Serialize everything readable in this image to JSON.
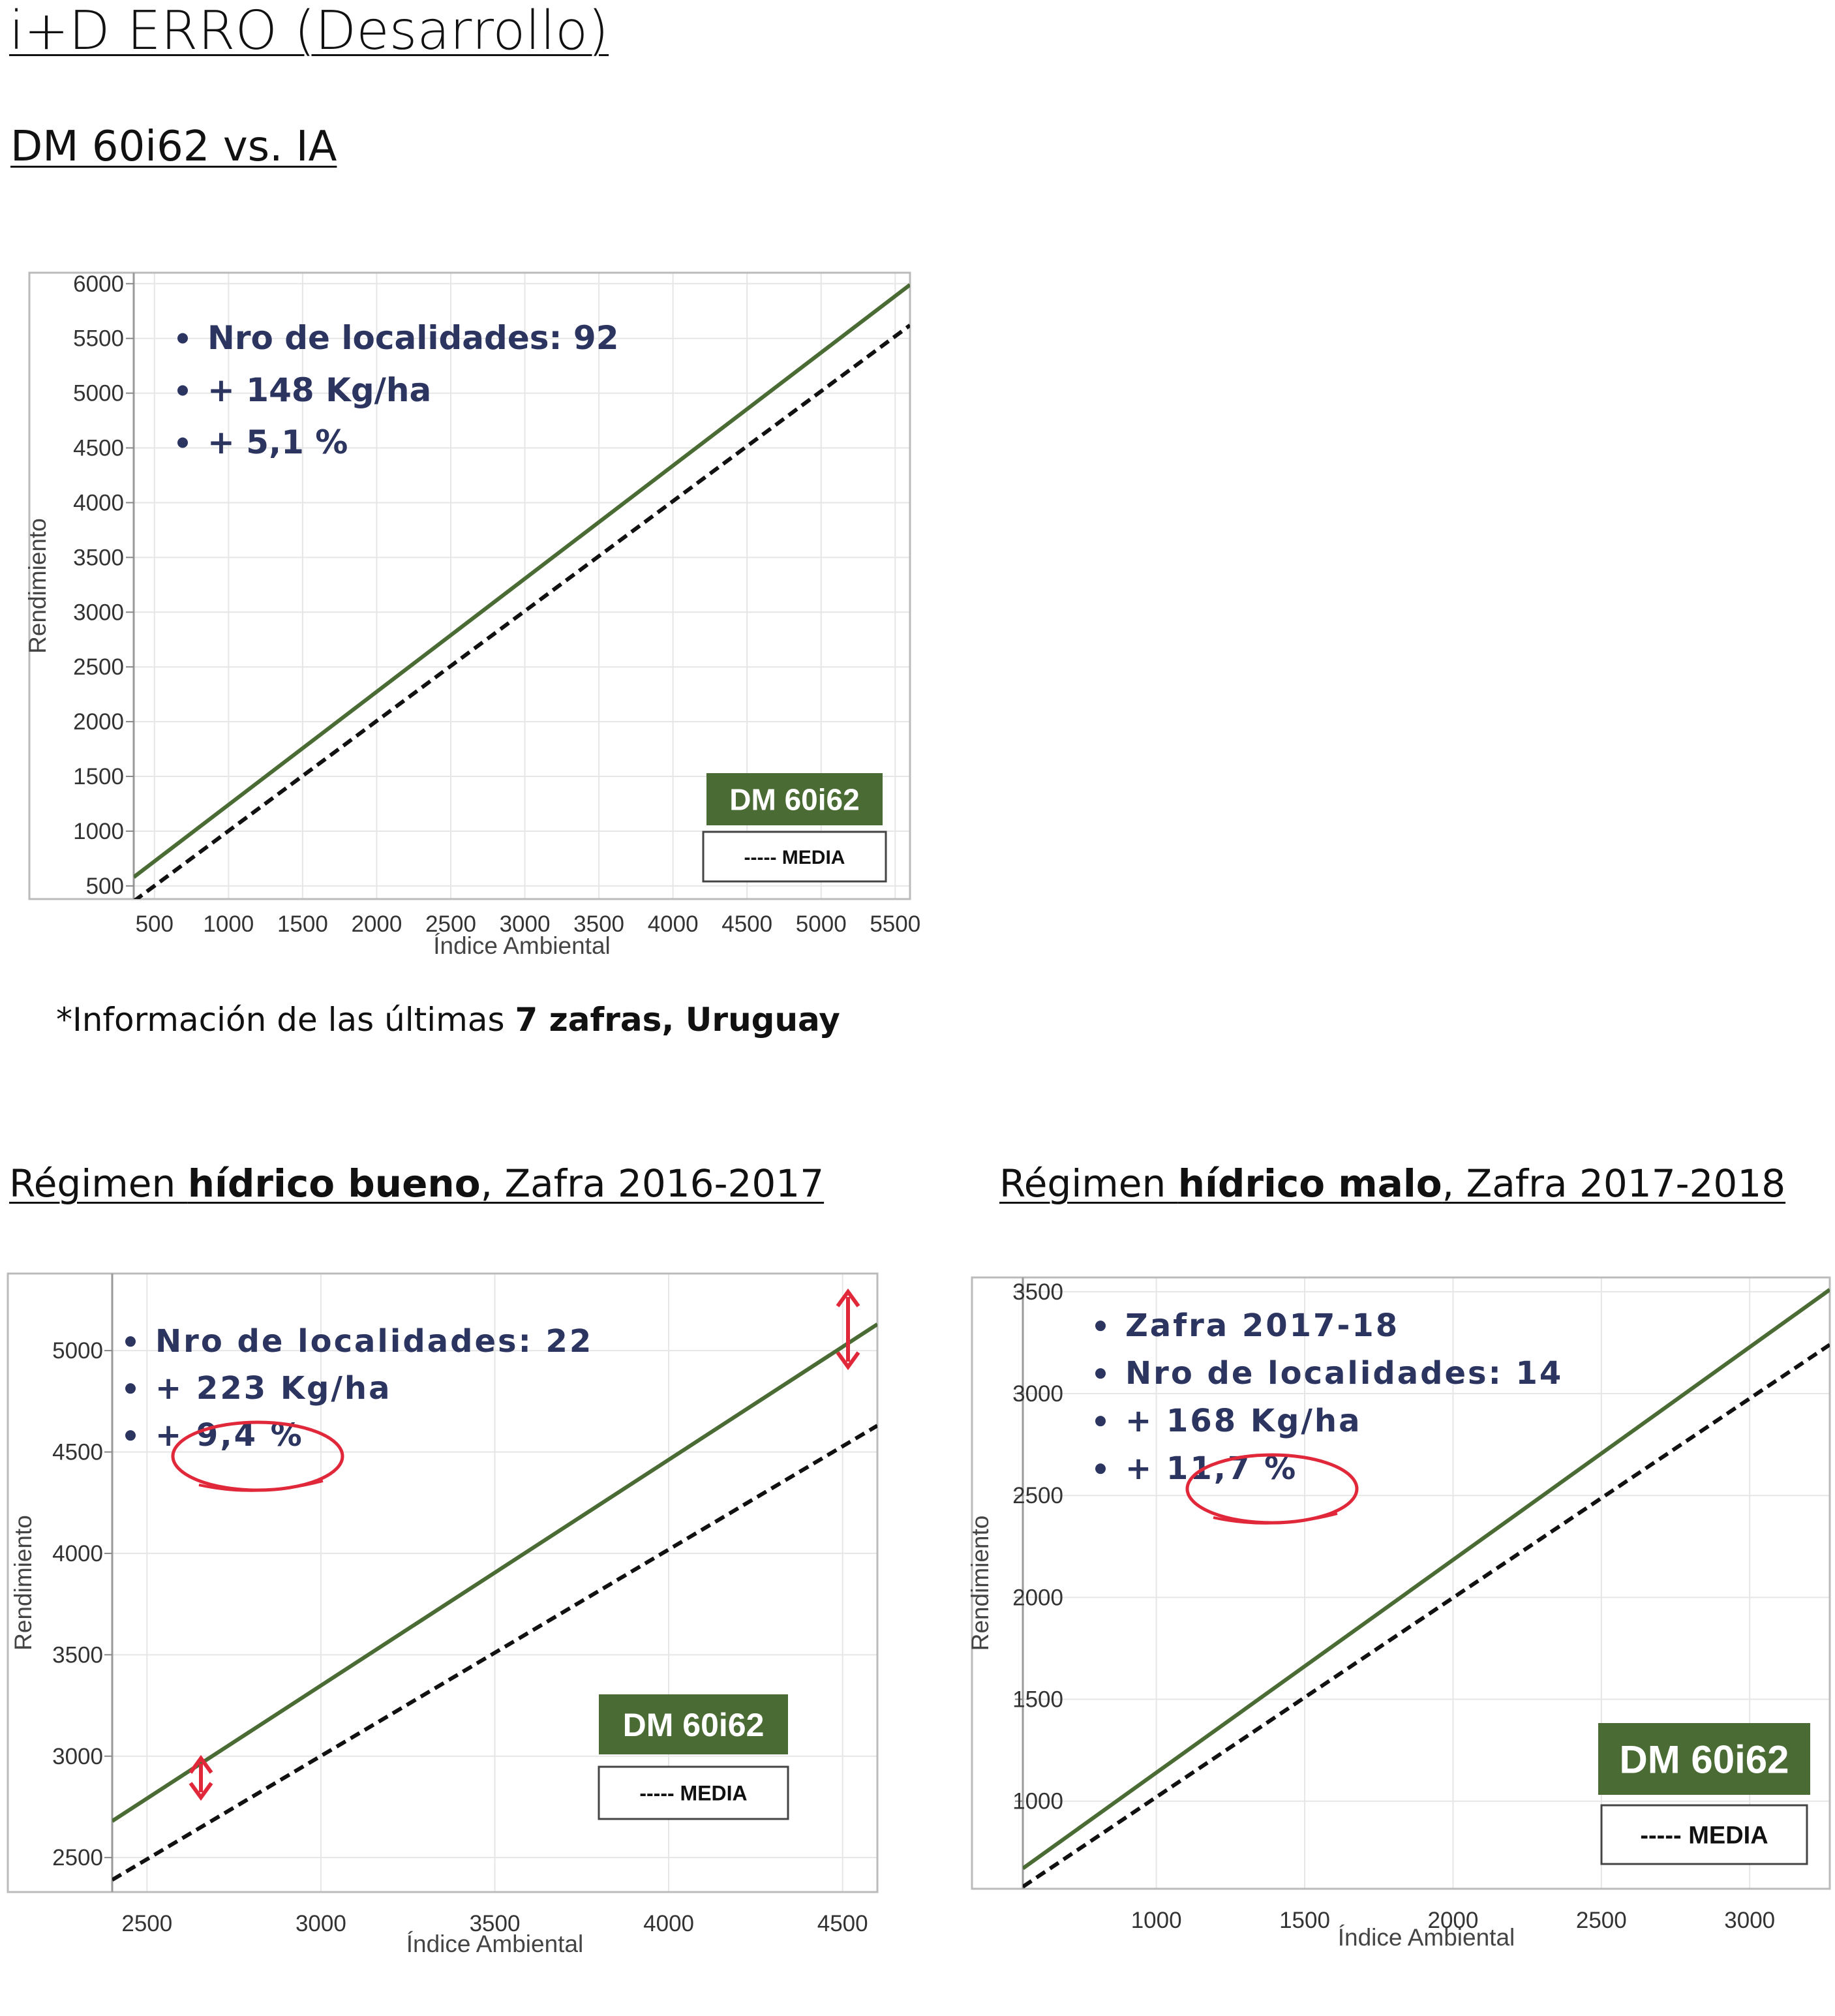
{
  "header": {
    "title": "i+D ERRO (Desarrollo)",
    "subtitle": "DM 60i62 vs. IA",
    "note_prefix": "*Información de las últimas ",
    "note_bold": "7 zafras, Uruguay"
  },
  "sections": {
    "good": {
      "prefix": "Régimen ",
      "bold": "hídrico bueno",
      "suffix": ", Zafra 2016-2017"
    },
    "bad": {
      "prefix": "Régimen ",
      "bold": "hídrico malo",
      "suffix": ", Zafra 2017-2018"
    }
  },
  "colors": {
    "variety": "#4a6b33",
    "media": "#111111",
    "bullet_text": "#2b3560",
    "annotation": "#e0283a",
    "frame": "#bbbbbb",
    "grid": "#e6e6e6"
  },
  "chart_data": [
    {
      "type": "line",
      "xlabel": "Índice Ambiental",
      "ylabel": "Rendimiento",
      "xlim": [
        360,
        5600
      ],
      "ylim": [
        380,
        6100
      ],
      "xticks": [
        500,
        1000,
        1500,
        2000,
        2500,
        3000,
        3500,
        4000,
        4500,
        5000,
        5500
      ],
      "yticks": [
        500,
        1000,
        1500,
        2000,
        2500,
        3000,
        3500,
        4000,
        4500,
        5000,
        5500,
        6000
      ],
      "series": [
        {
          "name": "DM 60i62",
          "style": "solid",
          "x": [
            360,
            5600
          ],
          "y": [
            580,
            5990
          ]
        },
        {
          "name": "MEDIA",
          "style": "dashed",
          "x": [
            360,
            5600
          ],
          "y": [
            360,
            5620
          ]
        }
      ],
      "bullets": [
        "Nro de localidades: 92",
        "+ 148 Kg/ha",
        "+ 5,1 %"
      ],
      "legend": {
        "variety_label": "DM 60i62",
        "media_label": "----- MEDIA"
      },
      "legend_position": "bottom-right",
      "grid": true
    },
    {
      "type": "line",
      "xlabel": "Índice Ambiental",
      "ylabel": "Rendimiento",
      "xlim": [
        2400,
        4600
      ],
      "ylim": [
        2330,
        5380
      ],
      "xticks": [
        2500,
        3000,
        3500,
        4000,
        4500
      ],
      "yticks": [
        2500,
        3000,
        3500,
        4000,
        4500,
        5000
      ],
      "series": [
        {
          "name": "DM 60i62",
          "style": "solid",
          "x": [
            2400,
            4600
          ],
          "y": [
            2680,
            5130
          ]
        },
        {
          "name": "MEDIA",
          "style": "dashed",
          "x": [
            2400,
            4600
          ],
          "y": [
            2390,
            4630
          ]
        }
      ],
      "bullets": [
        "Nro de localidades: 22",
        "+ 223 Kg/ha",
        "+ 9,4 %"
      ],
      "legend": {
        "variety_label": "DM 60i62",
        "media_label": "----- MEDIA"
      },
      "legend_position": "bottom-right",
      "grid": true
    },
    {
      "type": "line",
      "xlabel": "Índice Ambiental",
      "ylabel": "Rendimiento",
      "xlim": [
        550,
        3270
      ],
      "ylim": [
        570,
        3570
      ],
      "xticks": [
        1000,
        1500,
        2000,
        2500,
        3000
      ],
      "yticks": [
        1000,
        1500,
        2000,
        2500,
        3000,
        3500
      ],
      "series": [
        {
          "name": "DM 60i62",
          "style": "solid",
          "x": [
            550,
            3270
          ],
          "y": [
            670,
            3510
          ]
        },
        {
          "name": "MEDIA",
          "style": "dashed",
          "x": [
            550,
            3270
          ],
          "y": [
            580,
            3240
          ]
        }
      ],
      "bullets": [
        "Zafra 2017-18",
        "Nro de localidades: 14",
        "+ 168 Kg/ha",
        "+ 11,7 %"
      ],
      "legend": {
        "variety_label": "DM 60i62",
        "media_label": "----- MEDIA"
      },
      "legend_position": "bottom-right",
      "grid": true
    }
  ]
}
